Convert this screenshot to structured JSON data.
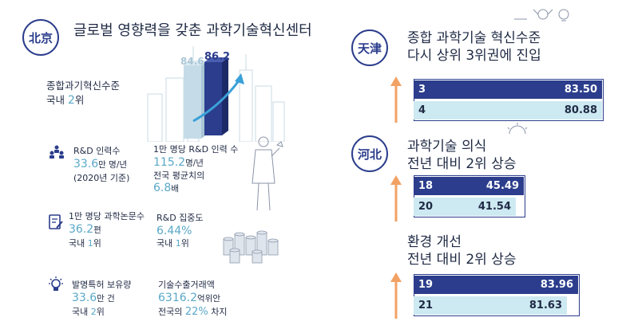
{
  "left": {
    "city": "北京",
    "title": "글로벌 영향력을 갖춘 과학기술혁신센터",
    "innovation": {
      "label": "종합과기혁신수준",
      "rank_prefix": "국내 ",
      "rank_num": "2",
      "rank_suffix": "위"
    },
    "bar_values": {
      "before": "84.6",
      "after": "86.2"
    },
    "rnd": {
      "label": "R&D 인력수",
      "value": "33.6",
      "unit": "만 명/년",
      "note": "(2020년 기준)"
    },
    "rnd_per": {
      "label": "1만 명당 R&D 인력 수",
      "value": "115.2",
      "unit": "명/년",
      "line2": "전국 평균치의",
      "multiple": "6.8",
      "multiple_unit": "배"
    },
    "papers": {
      "label": "1만 명당 과학논문수",
      "value": "36.2",
      "unit": "편",
      "rank_prefix": "국내 ",
      "rank_num": "1",
      "rank_suffix": "위"
    },
    "rnd_intensity": {
      "label": "R&D 집중도",
      "value": "6.44%",
      "rank_prefix": "국내 ",
      "rank_num": "1",
      "rank_suffix": "위"
    },
    "patents": {
      "label": "발명특허 보유량",
      "value": "33.6",
      "unit": "만 건",
      "rank_prefix": "국내 ",
      "rank_num": "2",
      "rank_suffix": "위"
    },
    "tech_trade": {
      "label": "기술수출거래액",
      "value": "6316.2",
      "unit": "억위안",
      "line2_prefix": "전국의 ",
      "share": "22%",
      "line2_suffix": " 차지"
    }
  },
  "right": {
    "tianjin": {
      "city": "天津",
      "title_line1": "종합 과학기술 혁신수준",
      "title_line2": "다시 상위 3위권에 진입",
      "rows": [
        {
          "rank": "3",
          "value": "83.50"
        },
        {
          "rank": "4",
          "value": "80.88"
        }
      ]
    },
    "hebei": {
      "city": "河北",
      "title_line1": "과학기술 의식",
      "title_line2": "전년 대비 2위 상승",
      "rows": [
        {
          "rank": "18",
          "value": "45.49"
        },
        {
          "rank": "20",
          "value": "41.54"
        }
      ]
    },
    "environment": {
      "title_line1": "환경 개선",
      "title_line2": "전년 대비 2위 상승",
      "rows": [
        {
          "rank": "19",
          "value": "83.96"
        },
        {
          "rank": "21",
          "value": "81.63"
        }
      ]
    }
  },
  "colors": {
    "navy": "#2b3d8c",
    "sky": "#5aa8c8",
    "light": "#cde9f2",
    "arrow": "#f2a264"
  }
}
